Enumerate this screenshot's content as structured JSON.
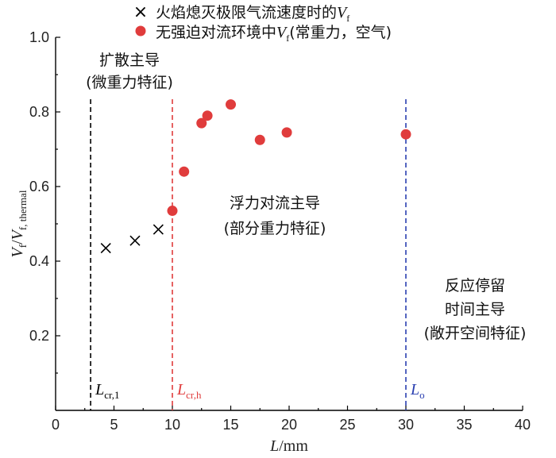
{
  "chart_data": {
    "type": "scatter",
    "xlabel": "L/mm",
    "ylabel": "Vf/Vf, thermal",
    "xlim": [
      0,
      40
    ],
    "ylim": [
      0,
      1.0
    ],
    "x_ticks": [
      "0",
      "5",
      "10",
      "15",
      "20",
      "25",
      "30",
      "35",
      "40"
    ],
    "y_ticks": [
      "0.2",
      "0.4",
      "0.6",
      "0.8",
      "1.0"
    ],
    "y_tick_values": [
      0.2,
      0.4,
      0.6,
      0.8,
      1.0
    ],
    "x_tick_values": [
      0,
      5,
      10,
      15,
      20,
      25,
      30,
      35,
      40
    ],
    "series": [
      {
        "name": "火焰熄灭极限气流速度时的Vf",
        "marker": "x",
        "color": "#000000",
        "points": [
          [
            4.3,
            0.435
          ],
          [
            6.8,
            0.455
          ],
          [
            8.8,
            0.485
          ]
        ]
      },
      {
        "name": "无强迫对流环境中Vf(常重力，空气)",
        "marker": "circle",
        "color": "#e03c3c",
        "points": [
          [
            10.0,
            0.535
          ],
          [
            11.0,
            0.64
          ],
          [
            12.5,
            0.77
          ],
          [
            13.0,
            0.79
          ],
          [
            15.0,
            0.82
          ],
          [
            17.5,
            0.725
          ],
          [
            19.8,
            0.745
          ],
          [
            30.0,
            0.74
          ]
        ]
      }
    ],
    "vertical_lines": [
      {
        "x": 3.0,
        "color": "#000000",
        "label_main": "L",
        "label_sub": "cr,1"
      },
      {
        "x": 10.0,
        "color": "#e03c3c",
        "label_main": "L",
        "label_sub": "cr,h"
      },
      {
        "x": 30.0,
        "color": "#2a3fb0",
        "label_main": "L",
        "label_sub": "o"
      }
    ],
    "legend": [
      {
        "symbol": "×",
        "text_prefix": "火焰熄灭极限气流速度时的",
        "var": "V",
        "sub": "f",
        "text_suffix": ""
      },
      {
        "symbol": "●",
        "text_prefix": "无强迫对流环境中",
        "var": "V",
        "sub": "f",
        "text_suffix": "(常重力，空气)"
      }
    ],
    "annotations": [
      {
        "lines": [
          "扩散主导",
          "(微重力特征)"
        ]
      },
      {
        "lines": [
          "浮力对流主导",
          "(部分重力特征)"
        ]
      },
      {
        "lines": [
          "反应停留",
          "时间主导",
          "(敞开空间特征)"
        ]
      }
    ]
  }
}
